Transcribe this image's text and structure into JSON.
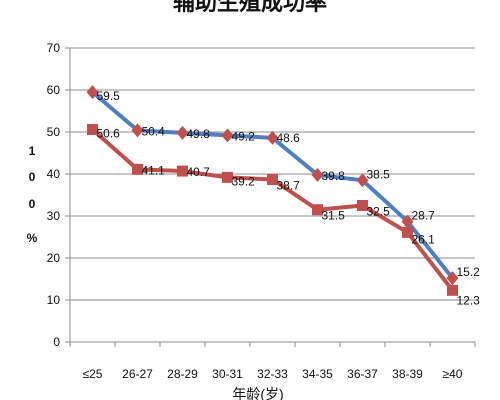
{
  "chart_data": {
    "type": "line",
    "title": "辅助生殖成功率",
    "xlabel": "年龄(岁)",
    "ylabel": "100%",
    "ylim": [
      0,
      70
    ],
    "yticks": [
      0,
      10,
      20,
      30,
      40,
      50,
      60,
      70
    ],
    "grid": true,
    "categories": [
      "≤25",
      "26-27",
      "28-29",
      "30-31",
      "32-33",
      "34-35",
      "36-37",
      "38-39",
      "≥40"
    ],
    "series": [
      {
        "values": [
          59.5,
          50.4,
          49.8,
          49.2,
          48.6,
          39.8,
          38.5,
          28.7,
          15.2
        ],
        "color": "#4f7fbf",
        "marker": "diamond",
        "marker_color": "#c0504d"
      },
      {
        "values": [
          50.6,
          41.1,
          40.7,
          39.2,
          38.7,
          31.5,
          32.5,
          26.1,
          12.3
        ],
        "color": "#c0504d",
        "marker": "square",
        "marker_color": "#c0504d"
      }
    ]
  }
}
